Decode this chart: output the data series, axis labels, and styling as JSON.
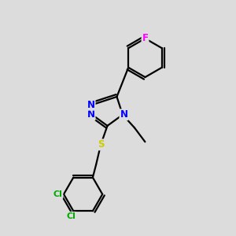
{
  "background_color": "#dcdcdc",
  "bond_color": "#000000",
  "bond_width": 1.6,
  "atom_colors": {
    "N": "#0000ff",
    "S": "#cccc00",
    "F": "#ff00ff",
    "Cl": "#00aa00",
    "C": "#000000"
  },
  "font_size": 8.5
}
